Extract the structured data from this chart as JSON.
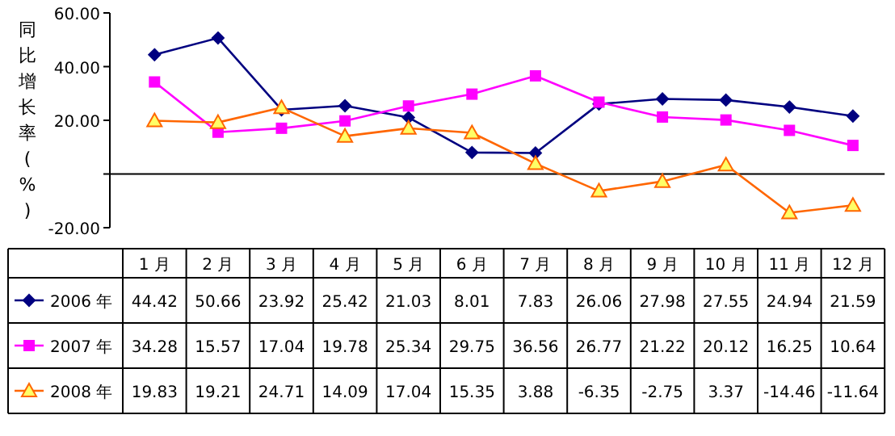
{
  "chart_data": {
    "type": "line",
    "ylabel": "同比增长率(%)",
    "categories": [
      "1 月",
      "2 月",
      "3 月",
      "4 月",
      "5 月",
      "6 月",
      "7 月",
      "8 月",
      "9 月",
      "10 月",
      "11 月",
      "12 月"
    ],
    "series": [
      {
        "name": "2006 年",
        "color": "#000080",
        "marker": "diamond",
        "values": [
          44.42,
          50.66,
          23.92,
          25.42,
          21.03,
          8.01,
          7.83,
          26.06,
          27.98,
          27.55,
          24.94,
          21.59
        ]
      },
      {
        "name": "2007 年",
        "color": "#ff00ff",
        "marker": "square",
        "values": [
          34.28,
          15.57,
          17.04,
          19.78,
          25.34,
          29.75,
          36.56,
          26.77,
          21.22,
          20.12,
          16.25,
          10.64
        ]
      },
      {
        "name": "2008 年",
        "color": "#ff6600",
        "marker": "triangle",
        "values": [
          19.83,
          19.21,
          24.71,
          14.09,
          17.04,
          15.35,
          3.88,
          -6.35,
          -2.75,
          3.37,
          -14.46,
          -11.64
        ]
      }
    ],
    "ylim": [
      -20,
      60
    ],
    "yticks": [
      {
        "value": 60,
        "label": "60.00"
      },
      {
        "value": 40,
        "label": "40.00"
      },
      {
        "value": 20,
        "label": "20.00"
      },
      {
        "value": 0,
        "label": null
      },
      {
        "value": -20,
        "label": "-20.00"
      }
    ],
    "data_labels": true,
    "legend": "bottom",
    "line_style": "solid"
  }
}
